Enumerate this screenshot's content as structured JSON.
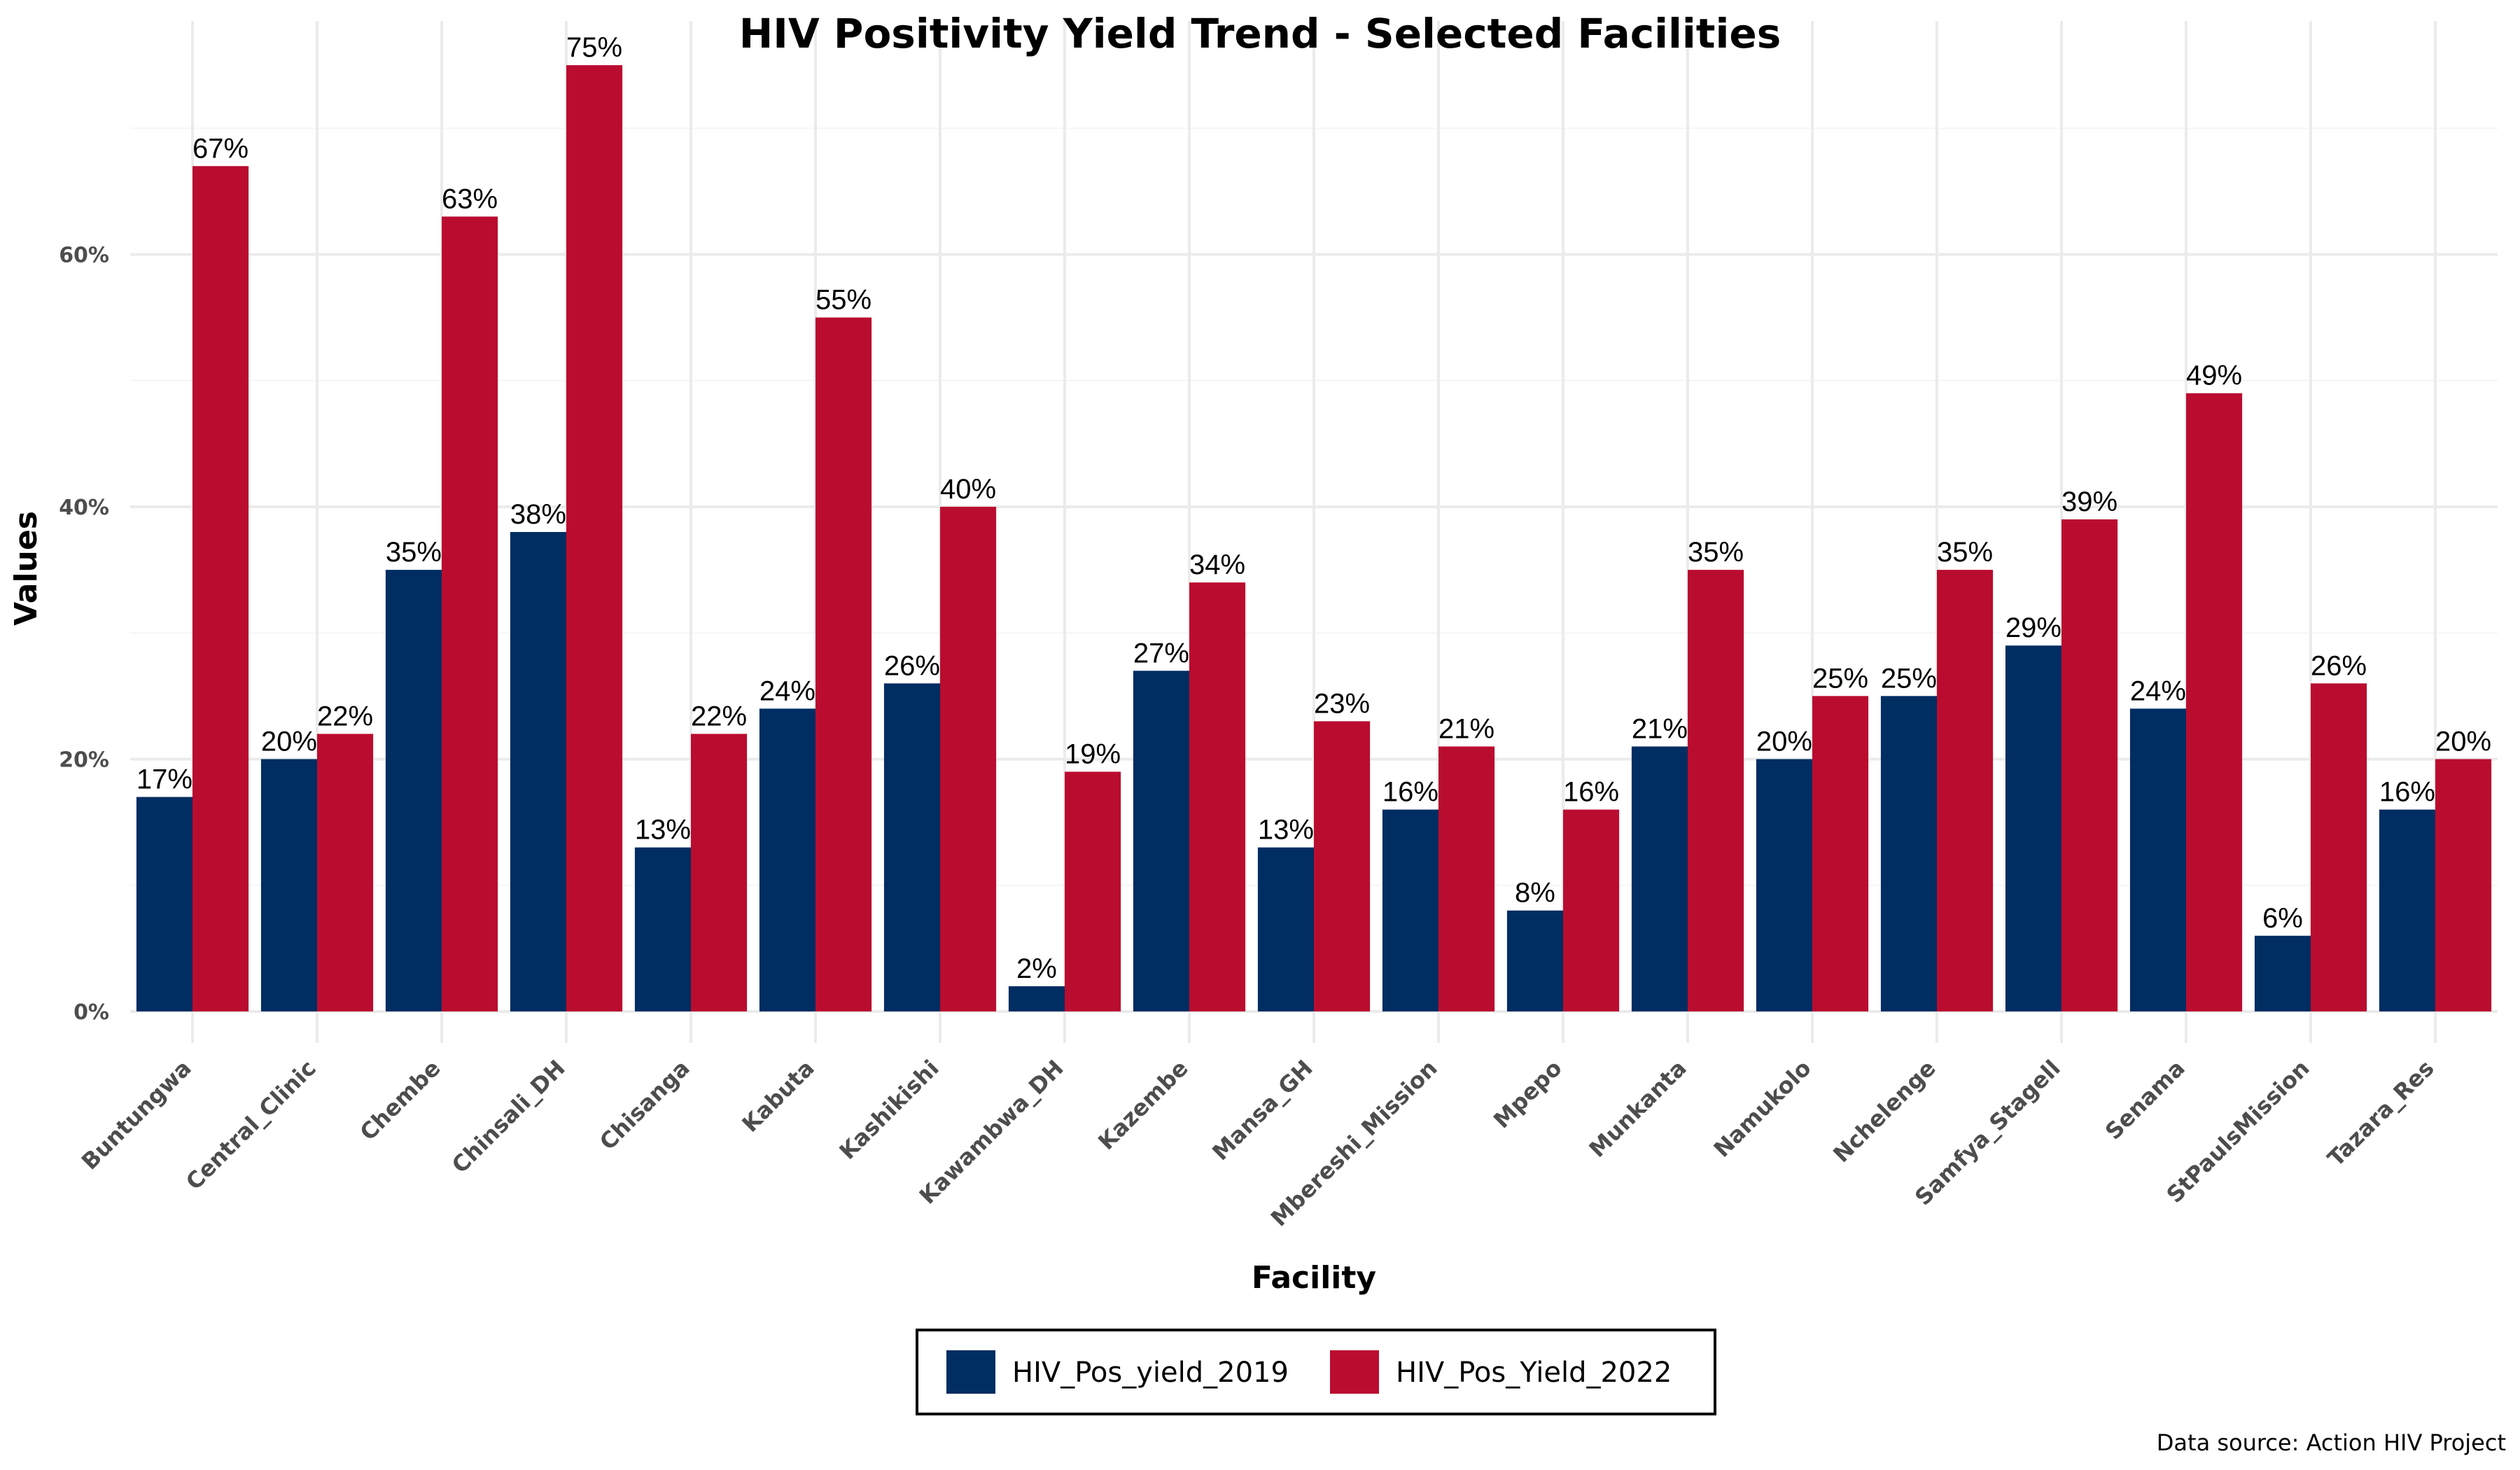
{
  "chart_data": {
    "type": "bar",
    "title": "HIV Positivity Yield Trend - Selected Facilities",
    "xlabel": "Facility",
    "ylabel": "Values",
    "caption": "Data source: Action HIV Project",
    "categories": [
      "Buntungwa",
      "Central_Clinic",
      "Chembe",
      "Chinsali_DH",
      "Chisanga",
      "Kabuta",
      "Kashikishi",
      "Kawambwa_DH",
      "Kazembe",
      "Mansa_GH",
      "Mbereshi_Mission",
      "Mpepo",
      "Munkanta",
      "Namukolo",
      "Nchelenge",
      "Samfya_Stagell",
      "Senama",
      "StPaulsMission",
      "Tazara_Res"
    ],
    "series": [
      {
        "name": "HIV_Pos_yield_2019",
        "color": "#002D62",
        "values": [
          17,
          20,
          35,
          38,
          13,
          24,
          26,
          2,
          27,
          13,
          16,
          8,
          21,
          20,
          25,
          29,
          24,
          6,
          16
        ]
      },
      {
        "name": "HIV_Pos_Yield_2022",
        "color": "#BA0C2F",
        "values": [
          67,
          22,
          63,
          75,
          22,
          55,
          40,
          19,
          34,
          23,
          21,
          16,
          35,
          25,
          35,
          39,
          49,
          26,
          20
        ]
      }
    ],
    "ylim": [
      -2.5,
      78.5
    ],
    "yticks": [
      0,
      20,
      40,
      60
    ],
    "ytick_labels": [
      "0%",
      "20%",
      "40%",
      "60%"
    ],
    "value_suffix": "%",
    "grid": true,
    "legend_position": "bottom"
  }
}
